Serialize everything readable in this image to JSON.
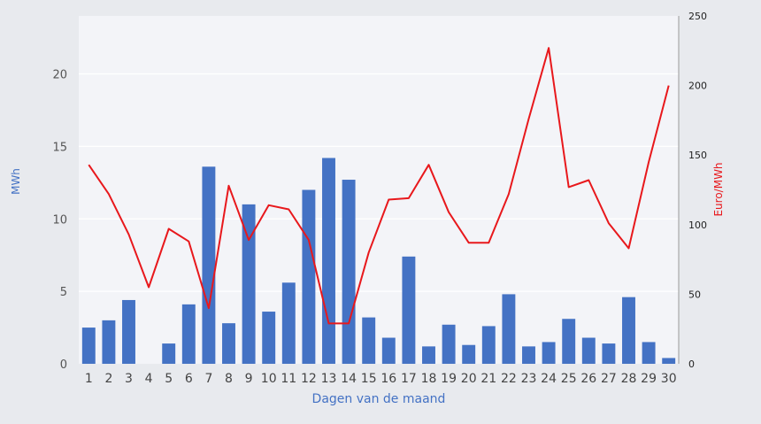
{
  "chart_data": {
    "type": "bar+line",
    "xlabel": "Dagen van de maand",
    "ylabel_left": "MWh",
    "ylabel_right": "Euro/MWh",
    "categories": [
      "1",
      "2",
      "3",
      "4",
      "5",
      "6",
      "7",
      "8",
      "9",
      "10",
      "11",
      "12",
      "13",
      "14",
      "15",
      "16",
      "17",
      "18",
      "19",
      "20",
      "21",
      "22",
      "23",
      "24",
      "25",
      "26",
      "27",
      "28",
      "29",
      "30"
    ],
    "ylim_left": [
      0,
      24
    ],
    "yticks_left": [
      0,
      5,
      10,
      15,
      20
    ],
    "ylim_right": [
      0,
      250
    ],
    "yticks_right": [
      0,
      50,
      100,
      150,
      200,
      250
    ],
    "grid": true,
    "series": [
      {
        "kind": "bar",
        "axis": "left",
        "color": "#4472c4",
        "values": [
          2.5,
          3.0,
          4.4,
          0.0,
          1.4,
          4.1,
          13.6,
          2.8,
          11.0,
          3.6,
          5.6,
          12.0,
          14.2,
          12.7,
          3.2,
          1.8,
          7.4,
          1.2,
          2.7,
          1.3,
          2.6,
          4.8,
          1.2,
          1.5,
          3.1,
          1.8,
          1.4,
          4.6,
          1.5,
          0.4
        ]
      },
      {
        "kind": "line",
        "axis": "right",
        "color": "#e8181c",
        "values": [
          143,
          122,
          93,
          55,
          97,
          88,
          40,
          128,
          89,
          114,
          111,
          89,
          29,
          29,
          80,
          118,
          119,
          143,
          109,
          87,
          87,
          122,
          176,
          227,
          127,
          132,
          101,
          83,
          145,
          200
        ]
      }
    ]
  }
}
